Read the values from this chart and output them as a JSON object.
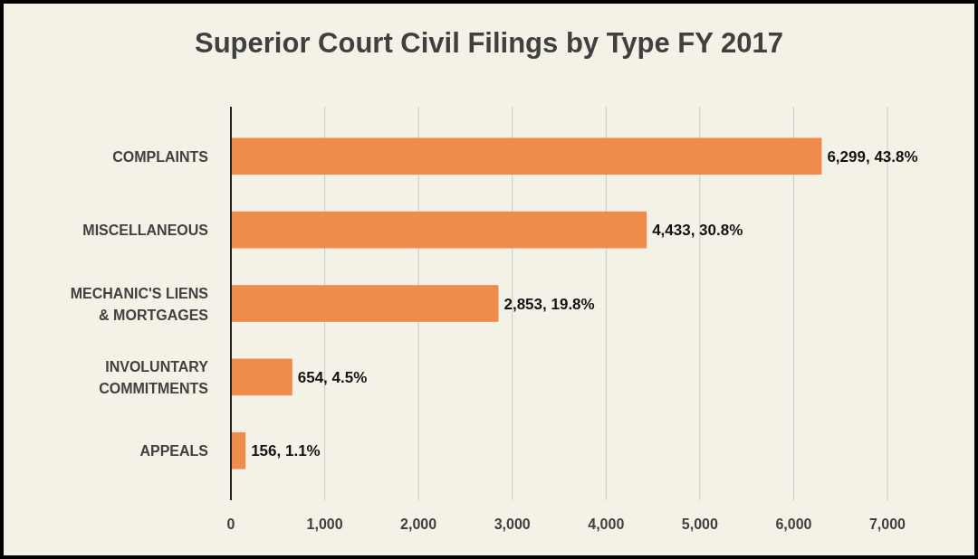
{
  "chart_data": {
    "type": "bar",
    "orientation": "horizontal",
    "title": "Superior Court Civil Filings by Type FY 2017",
    "categories": [
      "COMPLAINTS",
      "MISCELLANEOUS",
      "MECHANIC'S LIENS & MORTGAGES",
      "INVOLUNTARY COMMITMENTS",
      "APPEALS"
    ],
    "values": [
      6299,
      4433,
      2853,
      654,
      156
    ],
    "value_labels": [
      "6,299, 43.8%",
      "4,433, 30.8%",
      "2,853, 19.8%",
      "654, 4.5%",
      "156, 1.1%"
    ],
    "color": "#ef8c4c",
    "xlim": [
      0,
      7000
    ],
    "xticks": [
      0,
      {
        "value": 1000,
        "label": "1,000"
      },
      {
        "value": 2000,
        "label": "2,000"
      },
      {
        "value": 3000,
        "label": "3,000"
      },
      {
        "value": 4000,
        "label": "4,000"
      },
      {
        "value": 5000,
        "label": "5,000"
      },
      {
        "value": 6000,
        "label": "6,000"
      },
      {
        "value": 7000,
        "label": "7,000"
      }
    ],
    "grid": "x"
  }
}
